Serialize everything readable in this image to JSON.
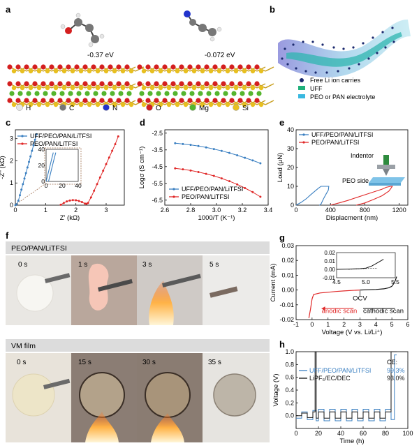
{
  "panels": {
    "a": {
      "label": "a",
      "energy_left": "-0.37 eV",
      "energy_right": "-0.072 eV",
      "legend": [
        {
          "symbol": "H",
          "color": "#e6e6e6"
        },
        {
          "symbol": "C",
          "color": "#777777"
        },
        {
          "symbol": "N",
          "color": "#2233cc"
        },
        {
          "symbol": "O",
          "color": "#d41f1f"
        },
        {
          "symbol": "Mg",
          "color": "#55b52e"
        },
        {
          "symbol": "Si",
          "color": "#e8c020"
        }
      ]
    },
    "b": {
      "label": "b",
      "legend": [
        {
          "label": "Free Li ion carries",
          "color": "#1c2a6e"
        },
        {
          "label": "UFF",
          "color": "#1fb07a"
        },
        {
          "label": "PEO or PAN electrolyte",
          "color": "#39b8e0"
        }
      ]
    },
    "f": {
      "label": "f",
      "row1_title": "PEO/PAN/LiTFSI",
      "row1_times": [
        "0 s",
        "1 s",
        "3 s",
        "5 s"
      ],
      "row2_title": "VM film",
      "row2_times": [
        "0 s",
        "15 s",
        "30 s",
        "35 s"
      ]
    }
  },
  "colors": {
    "blue": "#3a7fc1",
    "red": "#e02828",
    "black": "#111111"
  },
  "chart_data": [
    {
      "panel": "c",
      "type": "scatter",
      "xlabel": "Z' (kΩ)",
      "ylabel": "-Z'' (kΩ)",
      "xlim": [
        0,
        3.6
      ],
      "ylim": [
        0,
        3.4
      ],
      "xticks": [
        "0",
        "1",
        "2",
        "3"
      ],
      "yticks": [
        "0",
        "1",
        "2",
        "3"
      ],
      "legend": "top-left",
      "series": [
        {
          "name": "UFF/PEO/PAN/LiTFSI",
          "color": "#3a7fc1",
          "x": [
            0.0,
            0.05,
            0.1,
            0.15,
            0.2,
            0.25,
            0.3,
            0.35,
            0.4,
            0.45,
            0.5,
            0.55,
            0.6,
            0.65,
            0.7
          ],
          "y": [
            0.0,
            0.05,
            0.2,
            0.45,
            0.7,
            0.95,
            1.2,
            1.45,
            1.7,
            1.95,
            2.2,
            2.45,
            2.7,
            2.95,
            3.2
          ]
        },
        {
          "name": "PEO/PAN/LiTFSI",
          "color": "#e02828",
          "x": [
            1.5,
            1.6,
            1.7,
            1.8,
            1.9,
            2.0,
            2.1,
            2.2,
            2.3,
            2.35,
            2.4,
            2.5,
            2.6,
            2.7,
            2.8,
            2.9,
            3.0,
            3.1,
            3.2,
            3.3,
            3.4
          ],
          "y": [
            0.02,
            0.1,
            0.17,
            0.21,
            0.23,
            0.22,
            0.19,
            0.14,
            0.07,
            0.06,
            0.1,
            0.35,
            0.65,
            0.95,
            1.25,
            1.55,
            1.85,
            2.15,
            2.45,
            2.75,
            3.1
          ]
        }
      ],
      "inset": {
        "xlim": [
          0,
          40
        ],
        "ylim": [
          0,
          40
        ],
        "xticks": [
          "0",
          "20",
          "40"
        ],
        "yticks": [
          "0",
          "20",
          "40"
        ],
        "series": [
          {
            "name": "UFF/PEO/PAN/LiTFSI",
            "x": [
              0,
              1,
              2,
              3,
              4,
              5,
              6,
              7,
              8,
              9
            ],
            "y": [
              0,
              4,
              8,
              12,
              16,
              20,
              24,
              28,
              32,
              36
            ]
          },
          {
            "name": "UFF/PEO/PAN/LiTFSI",
            "x": [
              3,
              4,
              5,
              6,
              7,
              8,
              9,
              10,
              11,
              12
            ],
            "y": [
              0,
              4,
              8,
              12,
              16,
              20,
              24,
              28,
              32,
              36
            ]
          }
        ]
      }
    },
    {
      "panel": "d",
      "type": "line",
      "xlabel": "1000/T (K⁻¹)",
      "ylabel": "Logσ (S cm⁻¹)",
      "xlim": [
        2.6,
        3.4
      ],
      "ylim": [
        -6.8,
        -2.3
      ],
      "xticks": [
        "2.6",
        "2.8",
        "3.0",
        "3.2",
        "3.4"
      ],
      "yticks": [
        "-2.5",
        "-3.5",
        "-4.5",
        "-5.5",
        "-6.5"
      ],
      "legend": "bottom-left",
      "series": [
        {
          "name": "UFF/PEO/PAN/LiTFSI",
          "color": "#3a7fc1",
          "x": [
            2.68,
            2.74,
            2.8,
            2.86,
            2.92,
            2.98,
            3.04,
            3.1,
            3.16,
            3.22,
            3.28,
            3.34
          ],
          "y": [
            -3.1,
            -3.15,
            -3.2,
            -3.27,
            -3.35,
            -3.45,
            -3.56,
            -3.68,
            -3.82,
            -3.97,
            -4.13,
            -4.3
          ]
        },
        {
          "name": "PEO/PAN/LiTFSI",
          "color": "#e02828",
          "x": [
            2.68,
            2.74,
            2.8,
            2.86,
            2.92,
            2.98,
            3.04,
            3.1,
            3.16,
            3.22,
            3.28,
            3.34
          ],
          "y": [
            -4.6,
            -4.66,
            -4.73,
            -4.82,
            -4.93,
            -5.05,
            -5.2,
            -5.37,
            -5.56,
            -5.78,
            -6.02,
            -6.3
          ]
        }
      ]
    },
    {
      "panel": "e",
      "type": "line",
      "xlabel": "Displacment (nm)",
      "ylabel": "Load (μN)",
      "xlim": [
        0,
        1300
      ],
      "ylim": [
        0,
        40
      ],
      "xticks": [
        "0",
        "400",
        "800",
        "1200"
      ],
      "yticks": [
        "0",
        "10",
        "20",
        "30",
        "40"
      ],
      "legend": "top-left",
      "annotations": [
        "Indentor",
        "PEO side"
      ],
      "series": [
        {
          "name": "UFF/PEO/PAN/LiTFSI",
          "color": "#3a7fc1",
          "x": [
            0,
            60,
            120,
            170,
            220,
            260,
            290,
            320,
            340,
            360,
            380,
            375,
            350,
            320,
            300,
            290,
            280,
            270
          ],
          "y": [
            0,
            1.5,
            3.5,
            5.5,
            7.5,
            9,
            10,
            10,
            10,
            10,
            10,
            8,
            6,
            3.5,
            1.5,
            0.6,
            0.2,
            0
          ]
        },
        {
          "name": "PEO/PAN/LiTFSI",
          "color": "#e02828",
          "x": [
            400,
            500,
            600,
            700,
            800,
            900,
            1000,
            1050,
            1100,
            1120,
            1080,
            1000,
            900,
            800,
            700
          ],
          "y": [
            0,
            1.2,
            2.5,
            4,
            5.5,
            7,
            8.5,
            9.5,
            10,
            10,
            7.5,
            5,
            3,
            1.2,
            0
          ]
        }
      ]
    },
    {
      "panel": "g",
      "type": "line",
      "xlabel": "Voltage (V vs. Li/Li⁺)",
      "ylabel": "Current (mA)",
      "xlim": [
        -1,
        6
      ],
      "ylim": [
        -0.02,
        0.03
      ],
      "xticks": [
        "-1",
        "0",
        "1",
        "2",
        "3",
        "4",
        "5",
        "6"
      ],
      "yticks": [
        "-0.02",
        "-0.01",
        "0.00",
        "0.01",
        "0.02",
        "0.03"
      ],
      "annotations": [
        "OCV",
        "anodic scan",
        "cathodic scan"
      ],
      "series": [
        {
          "name": "cathodic scan",
          "color": "#111111",
          "x": [
            3.0,
            3.5,
            4.0,
            4.5,
            4.8,
            5.0,
            5.1,
            5.2,
            5.3
          ],
          "y": [
            0.0,
            0.0002,
            0.0004,
            0.0008,
            0.0015,
            0.0025,
            0.004,
            0.006,
            0.009
          ]
        },
        {
          "name": "anodic scan",
          "color": "#e02828",
          "x": [
            3.0,
            2.5,
            2.0,
            1.5,
            1.0,
            0.5,
            0.1,
            0.0,
            -0.1,
            -0.2
          ],
          "y": [
            0.0,
            -0.0003,
            -0.0006,
            -0.001,
            -0.0015,
            -0.002,
            -0.003,
            -0.006,
            -0.013,
            -0.019
          ]
        }
      ],
      "inset": {
        "xlim": [
          4.5,
          5.5
        ],
        "ylim": [
          -0.01,
          0.02
        ],
        "xticks": [
          "4.5",
          "5.0",
          "5.5"
        ],
        "yticks": [
          "0.02",
          "0.01",
          "0.00",
          "-0.01"
        ],
        "series": [
          {
            "name": "cathodic scan",
            "x": [
              4.5,
              4.7,
              4.9,
              5.0,
              5.1,
              5.2,
              5.3
            ],
            "y": [
              0.0,
              0.0003,
              0.0008,
              0.0015,
              0.004,
              0.008,
              0.012
            ]
          }
        ]
      }
    },
    {
      "panel": "h",
      "type": "line",
      "xlabel": "Time (h)",
      "ylabel": "Voltage (V)",
      "xlim": [
        0,
        100
      ],
      "ylim": [
        -0.2,
        1.0
      ],
      "xticks": [
        "0",
        "20",
        "40",
        "60",
        "80",
        "100"
      ],
      "yticks": [
        "0.0",
        "0.2",
        "0.4",
        "0.6",
        "0.8",
        "1.0"
      ],
      "legend_title": "CE:",
      "series": [
        {
          "name": "UFF/PEO/PAN/LiTFSI",
          "color": "#3a7fc1",
          "ce": "99.3%",
          "x": [
            0,
            5,
            5,
            10,
            10,
            15,
            15,
            18,
            18,
            20,
            20,
            25,
            25,
            30,
            30,
            35,
            35,
            40,
            40,
            45,
            45,
            50,
            50,
            55,
            55,
            60,
            60,
            65,
            65,
            70,
            70,
            75,
            75,
            80,
            80,
            85,
            85,
            88,
            88,
            90
          ],
          "y": [
            -0.04,
            -0.04,
            0.06,
            0.06,
            -0.06,
            -0.06,
            0.08,
            0.08,
            -0.08,
            -0.08,
            0.1,
            0.1,
            -0.08,
            -0.08,
            0.1,
            0.1,
            -0.08,
            -0.08,
            0.1,
            0.1,
            -0.08,
            -0.08,
            0.1,
            0.1,
            -0.08,
            -0.08,
            0.1,
            0.1,
            -0.08,
            -0.08,
            0.1,
            0.1,
            -0.08,
            -0.08,
            0.1,
            0.1,
            -0.06,
            -0.06,
            0.95,
            0.95
          ]
        },
        {
          "name": "LiPF₆/EC/DEC",
          "color": "#111111",
          "ce": "93.0%",
          "x": [
            0,
            5,
            5,
            10,
            10,
            15,
            15,
            17,
            17,
            18,
            18,
            20,
            20,
            25,
            25,
            30,
            30,
            35,
            35,
            40,
            40,
            45,
            45,
            50,
            50,
            55,
            55,
            60,
            60,
            65,
            65,
            70,
            70,
            75,
            75,
            80,
            80,
            85,
            85,
            90
          ],
          "y": [
            0.0,
            0.0,
            0.04,
            0.04,
            -0.03,
            -0.03,
            0.06,
            0.06,
            1.0,
            1.0,
            -0.04,
            -0.04,
            0.06,
            0.06,
            -0.04,
            -0.04,
            0.06,
            0.06,
            -0.04,
            -0.04,
            0.06,
            0.06,
            -0.04,
            -0.04,
            0.06,
            0.06,
            -0.04,
            -0.04,
            0.06,
            0.06,
            -0.04,
            -0.04,
            0.06,
            0.06,
            -0.04,
            -0.04,
            0.06,
            0.06,
            1.0,
            1.0
          ]
        }
      ]
    }
  ]
}
